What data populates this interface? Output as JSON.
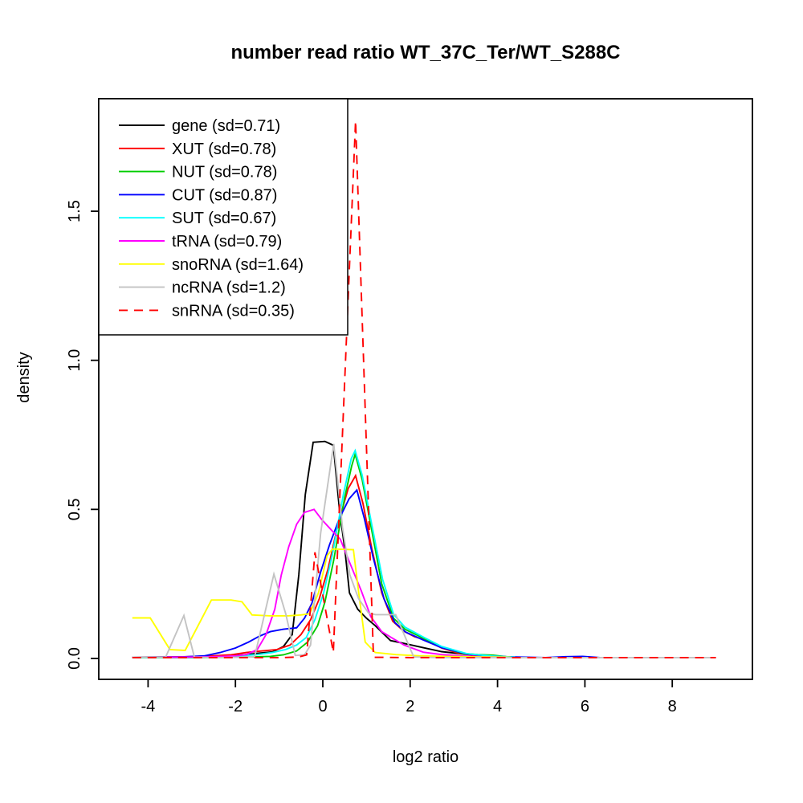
{
  "title": "number read ratio WT_37C_Ter/WT_S288C",
  "chart_data": {
    "type": "line",
    "title": "number read ratio WT_37C_Ter/WT_S288C",
    "xlabel": "log2 ratio",
    "ylabel": "density",
    "xlim": [
      -5.1,
      9.8
    ],
    "ylim": [
      0,
      1.88
    ],
    "x_ticks": [
      -4,
      -2,
      0,
      2,
      4,
      6,
      8
    ],
    "y_ticks": [
      0.0,
      0.5,
      1.0,
      1.5
    ],
    "grid": false,
    "legend_position": "top-left",
    "box_color": "#000000",
    "background": "#ffffff",
    "series": [
      {
        "id": "gene",
        "name": "gene (sd=0.71)",
        "color": "#000000",
        "dashed": false,
        "points": [
          [
            -4.36,
            0.004
          ],
          [
            -3.5,
            0.004
          ],
          [
            -2.8,
            0.005
          ],
          [
            -2.2,
            0.008
          ],
          [
            -1.8,
            0.012
          ],
          [
            -1.45,
            0.018
          ],
          [
            -1.15,
            0.022
          ],
          [
            -0.9,
            0.04
          ],
          [
            -0.7,
            0.08
          ],
          [
            -0.55,
            0.28
          ],
          [
            -0.4,
            0.55
          ],
          [
            -0.22,
            0.725
          ],
          [
            0.05,
            0.728
          ],
          [
            0.24,
            0.715
          ],
          [
            0.38,
            0.5
          ],
          [
            0.51,
            0.36
          ],
          [
            0.61,
            0.22
          ],
          [
            0.8,
            0.165
          ],
          [
            1.0,
            0.135
          ],
          [
            1.2,
            0.11
          ],
          [
            1.55,
            0.06
          ],
          [
            2.0,
            0.046
          ],
          [
            2.3,
            0.036
          ],
          [
            2.72,
            0.023
          ],
          [
            3.33,
            0.013
          ],
          [
            4.0,
            0.006
          ],
          [
            4.35,
            0.004
          ]
        ]
      },
      {
        "id": "XUT",
        "name": "XUT (sd=0.78)",
        "color": "#ff0000",
        "dashed": false,
        "points": [
          [
            -4.36,
            0.004
          ],
          [
            -3.3,
            0.005
          ],
          [
            -2.6,
            0.008
          ],
          [
            -2.1,
            0.012
          ],
          [
            -1.75,
            0.02
          ],
          [
            -1.4,
            0.025
          ],
          [
            -1.05,
            0.03
          ],
          [
            -0.75,
            0.045
          ],
          [
            -0.5,
            0.08
          ],
          [
            -0.28,
            0.13
          ],
          [
            -0.08,
            0.2
          ],
          [
            0.12,
            0.3
          ],
          [
            0.35,
            0.45
          ],
          [
            0.58,
            0.57
          ],
          [
            0.75,
            0.613
          ],
          [
            0.92,
            0.52
          ],
          [
            1.12,
            0.37
          ],
          [
            1.35,
            0.22
          ],
          [
            1.6,
            0.125
          ],
          [
            1.85,
            0.092
          ],
          [
            2.1,
            0.073
          ],
          [
            2.35,
            0.062
          ],
          [
            2.72,
            0.035
          ],
          [
            3.1,
            0.018
          ],
          [
            3.55,
            0.01
          ],
          [
            4.0,
            0.006
          ],
          [
            4.35,
            0.004
          ]
        ]
      },
      {
        "id": "NUT",
        "name": "NUT (sd=0.78)",
        "color": "#00cd00",
        "dashed": false,
        "points": [
          [
            -4.36,
            0.003
          ],
          [
            -3.0,
            0.003
          ],
          [
            -2.2,
            0.004
          ],
          [
            -1.6,
            0.005
          ],
          [
            -1.2,
            0.007
          ],
          [
            -0.9,
            0.012
          ],
          [
            -0.6,
            0.025
          ],
          [
            -0.35,
            0.055
          ],
          [
            -0.12,
            0.11
          ],
          [
            0.05,
            0.19
          ],
          [
            0.25,
            0.33
          ],
          [
            0.5,
            0.54
          ],
          [
            0.66,
            0.645
          ],
          [
            0.74,
            0.685
          ],
          [
            0.9,
            0.6
          ],
          [
            1.12,
            0.43
          ],
          [
            1.35,
            0.25
          ],
          [
            1.62,
            0.135
          ],
          [
            1.88,
            0.098
          ],
          [
            2.3,
            0.068
          ],
          [
            2.72,
            0.037
          ],
          [
            3.2,
            0.017
          ],
          [
            3.55,
            0.013
          ],
          [
            3.9,
            0.011
          ],
          [
            4.2,
            0.006
          ],
          [
            4.4,
            0.004
          ]
        ]
      },
      {
        "id": "CUT",
        "name": "CUT (sd=0.87)",
        "color": "#0000ff",
        "dashed": false,
        "points": [
          [
            -4.36,
            0.004
          ],
          [
            -3.2,
            0.005
          ],
          [
            -2.7,
            0.009
          ],
          [
            -2.35,
            0.02
          ],
          [
            -2.0,
            0.035
          ],
          [
            -1.7,
            0.055
          ],
          [
            -1.45,
            0.075
          ],
          [
            -1.2,
            0.09
          ],
          [
            -0.9,
            0.098
          ],
          [
            -0.6,
            0.103
          ],
          [
            -0.42,
            0.135
          ],
          [
            -0.25,
            0.185
          ],
          [
            -0.05,
            0.29
          ],
          [
            0.15,
            0.38
          ],
          [
            0.38,
            0.47
          ],
          [
            0.6,
            0.535
          ],
          [
            0.78,
            0.565
          ],
          [
            0.95,
            0.47
          ],
          [
            1.15,
            0.34
          ],
          [
            1.4,
            0.2
          ],
          [
            1.65,
            0.12
          ],
          [
            1.9,
            0.088
          ],
          [
            2.3,
            0.062
          ],
          [
            2.72,
            0.036
          ],
          [
            3.3,
            0.015
          ],
          [
            3.8,
            0.008
          ],
          [
            4.3,
            0.005
          ],
          [
            5.1,
            0.003
          ],
          [
            5.55,
            0.006
          ],
          [
            5.95,
            0.007
          ],
          [
            6.35,
            0.003
          ]
        ]
      },
      {
        "id": "SUT",
        "name": "SUT (sd=0.67)",
        "color": "#00ffff",
        "dashed": false,
        "points": [
          [
            -4.36,
            0.003
          ],
          [
            -3.0,
            0.004
          ],
          [
            -2.4,
            0.006
          ],
          [
            -1.9,
            0.009
          ],
          [
            -1.5,
            0.013
          ],
          [
            -1.15,
            0.02
          ],
          [
            -0.85,
            0.03
          ],
          [
            -0.6,
            0.045
          ],
          [
            -0.38,
            0.07
          ],
          [
            -0.18,
            0.13
          ],
          [
            0.02,
            0.22
          ],
          [
            0.22,
            0.35
          ],
          [
            0.47,
            0.55
          ],
          [
            0.65,
            0.67
          ],
          [
            0.74,
            0.697
          ],
          [
            0.9,
            0.615
          ],
          [
            1.12,
            0.45
          ],
          [
            1.37,
            0.265
          ],
          [
            1.62,
            0.148
          ],
          [
            1.88,
            0.105
          ],
          [
            2.3,
            0.072
          ],
          [
            2.72,
            0.04
          ],
          [
            3.3,
            0.016
          ],
          [
            3.85,
            0.008
          ],
          [
            4.4,
            0.004
          ]
        ]
      },
      {
        "id": "tRNA",
        "name": "tRNA (sd=0.79)",
        "color": "#ff00ff",
        "dashed": false,
        "points": [
          [
            -4.36,
            0.004
          ],
          [
            -3.4,
            0.004
          ],
          [
            -2.7,
            0.005
          ],
          [
            -2.3,
            0.007
          ],
          [
            -2.0,
            0.009
          ],
          [
            -1.75,
            0.013
          ],
          [
            -1.5,
            0.03
          ],
          [
            -1.3,
            0.08
          ],
          [
            -1.1,
            0.165
          ],
          [
            -0.95,
            0.28
          ],
          [
            -0.78,
            0.375
          ],
          [
            -0.6,
            0.45
          ],
          [
            -0.42,
            0.49
          ],
          [
            -0.2,
            0.5
          ],
          [
            -0.02,
            0.465
          ],
          [
            0.2,
            0.43
          ],
          [
            0.4,
            0.4
          ],
          [
            0.62,
            0.32
          ],
          [
            0.88,
            0.227
          ],
          [
            1.1,
            0.14
          ],
          [
            1.35,
            0.09
          ],
          [
            1.55,
            0.072
          ],
          [
            1.86,
            0.045
          ],
          [
            2.3,
            0.021
          ],
          [
            2.72,
            0.013
          ],
          [
            3.2,
            0.008
          ],
          [
            3.7,
            0.005
          ],
          [
            4.3,
            0.004
          ]
        ]
      },
      {
        "id": "snoRNA",
        "name": "snoRNA (sd=1.64)",
        "color": "#ffff00",
        "dashed": false,
        "points": [
          [
            -4.36,
            0.136
          ],
          [
            -3.95,
            0.136
          ],
          [
            -3.5,
            0.03
          ],
          [
            -3.15,
            0.027
          ],
          [
            -2.55,
            0.196
          ],
          [
            -2.1,
            0.196
          ],
          [
            -1.85,
            0.19
          ],
          [
            -1.62,
            0.146
          ],
          [
            -1.2,
            0.143
          ],
          [
            -0.8,
            0.143
          ],
          [
            -0.5,
            0.146
          ],
          [
            -0.3,
            0.15
          ],
          [
            -0.1,
            0.22
          ],
          [
            0.1,
            0.345
          ],
          [
            0.22,
            0.367
          ],
          [
            0.7,
            0.365
          ],
          [
            0.83,
            0.21
          ],
          [
            0.97,
            0.055
          ],
          [
            1.2,
            0.02
          ],
          [
            1.67,
            0.013
          ],
          [
            2.2,
            0.009
          ],
          [
            2.85,
            0.007
          ],
          [
            3.5,
            0.005
          ],
          [
            4.3,
            0.004
          ]
        ]
      },
      {
        "id": "ncRNA",
        "name": "ncRNA (sd=1.2)",
        "color": "#c3c3c3",
        "dashed": false,
        "points": [
          [
            -4.36,
            0.004
          ],
          [
            -3.6,
            0.004
          ],
          [
            -3.18,
            0.144
          ],
          [
            -2.94,
            0.004
          ],
          [
            -2.4,
            0.003
          ],
          [
            -1.9,
            0.004
          ],
          [
            -1.56,
            0.006
          ],
          [
            -1.12,
            0.283
          ],
          [
            -0.85,
            0.15
          ],
          [
            -0.63,
            0.01
          ],
          [
            -0.42,
            0.012
          ],
          [
            -0.28,
            0.045
          ],
          [
            -0.05,
            0.42
          ],
          [
            0.25,
            0.72
          ],
          [
            0.45,
            0.44
          ],
          [
            0.62,
            0.28
          ],
          [
            0.82,
            0.2
          ],
          [
            1.05,
            0.152
          ],
          [
            1.21,
            0.147
          ],
          [
            1.67,
            0.147
          ],
          [
            2.08,
            0.005
          ],
          [
            2.6,
            0.003
          ],
          [
            4.0,
            0.003
          ],
          [
            6.0,
            0.003
          ],
          [
            9.0,
            0.003
          ]
        ]
      },
      {
        "id": "snRNA",
        "name": "snRNA (sd=0.35)",
        "color": "#ff0000",
        "dashed": true,
        "points": [
          [
            -4.36,
            0.003
          ],
          [
            -3.0,
            0.003
          ],
          [
            -1.8,
            0.003
          ],
          [
            -0.9,
            0.003
          ],
          [
            -0.55,
            0.005
          ],
          [
            -0.37,
            0.012
          ],
          [
            -0.18,
            0.356
          ],
          [
            0.03,
            0.19
          ],
          [
            0.24,
            0.02
          ],
          [
            0.75,
            1.803
          ],
          [
            1.16,
            0.004
          ],
          [
            2.0,
            0.003
          ],
          [
            3.5,
            0.003
          ],
          [
            5.0,
            0.003
          ],
          [
            7.0,
            0.003
          ],
          [
            9.0,
            0.003
          ]
        ]
      }
    ]
  }
}
